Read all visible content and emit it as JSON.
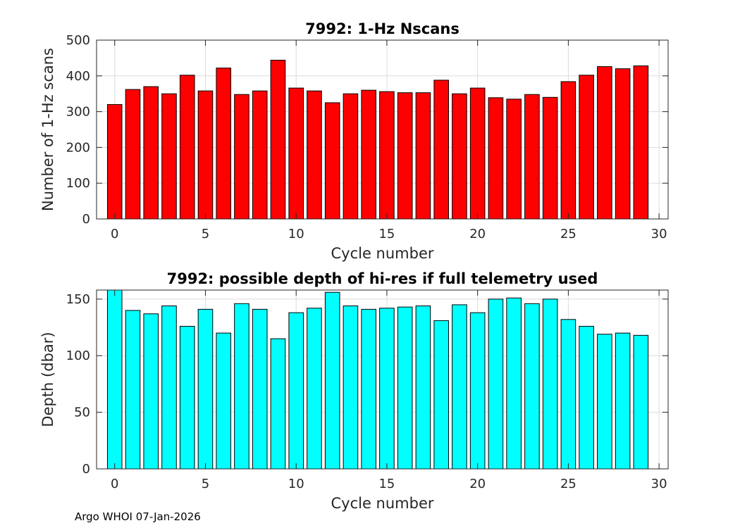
{
  "chart_data": [
    {
      "type": "bar",
      "title": "7992: 1-Hz Nscans",
      "xlabel": "Cycle number",
      "ylabel": "Number of 1-Hz scans",
      "xlim": [
        -1,
        30.5
      ],
      "ylim": [
        0,
        500
      ],
      "xticks": [
        0,
        5,
        10,
        15,
        20,
        25,
        30
      ],
      "yticks": [
        0,
        100,
        200,
        300,
        400,
        500
      ],
      "grid": true,
      "bar_color": "#ff0000",
      "x": [
        0,
        1,
        2,
        3,
        4,
        5,
        6,
        7,
        8,
        9,
        10,
        11,
        12,
        13,
        14,
        15,
        16,
        17,
        18,
        19,
        20,
        21,
        22,
        23,
        24,
        25,
        26,
        27,
        28,
        29
      ],
      "values": [
        320,
        362,
        370,
        350,
        402,
        358,
        422,
        348,
        358,
        444,
        366,
        358,
        325,
        350,
        360,
        356,
        353,
        353,
        388,
        350,
        366,
        339,
        335,
        348,
        340,
        384,
        402,
        426,
        420,
        428
      ]
    },
    {
      "type": "bar",
      "title": "7992: possible depth of hi-res if full telemetry used",
      "xlabel": "Cycle number",
      "ylabel": "Depth (dbar)",
      "xlim": [
        -1,
        30.5
      ],
      "ylim": [
        0,
        158
      ],
      "xticks": [
        0,
        5,
        10,
        15,
        20,
        25,
        30
      ],
      "yticks": [
        0,
        50,
        100,
        150
      ],
      "grid": true,
      "bar_color": "#00ffff",
      "x": [
        0,
        1,
        2,
        3,
        4,
        5,
        6,
        7,
        8,
        9,
        10,
        11,
        12,
        13,
        14,
        15,
        16,
        17,
        18,
        19,
        20,
        21,
        22,
        23,
        24,
        25,
        26,
        27,
        28,
        29
      ],
      "values": [
        158,
        140,
        137,
        144,
        126,
        141,
        120,
        146,
        141,
        115,
        138,
        142,
        156,
        144,
        141,
        142,
        143,
        144,
        131,
        145,
        138,
        150,
        151,
        146,
        150,
        132,
        126,
        119,
        120,
        118
      ]
    }
  ],
  "footer": {
    "text": "Argo WHOI 07-Jan-2026"
  }
}
